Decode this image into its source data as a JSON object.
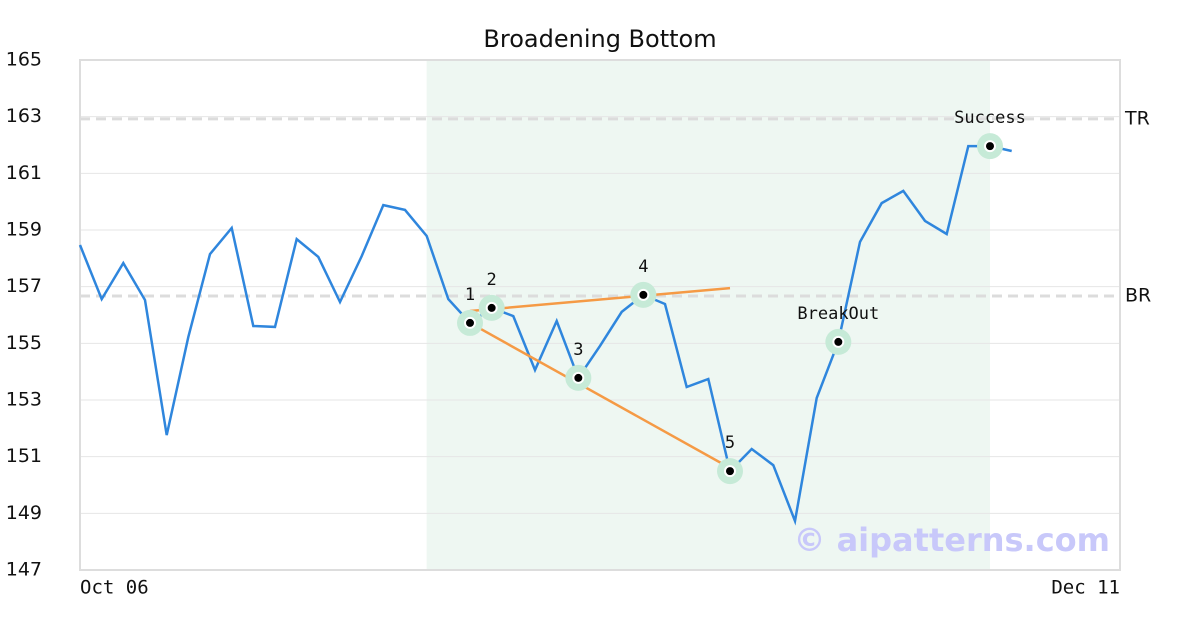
{
  "chart_data": {
    "type": "line",
    "title": "Broadening Bottom",
    "categories": [
      "Oct 06",
      null,
      null,
      null,
      null,
      null,
      null,
      null,
      null,
      null,
      null,
      null,
      null,
      null,
      null,
      null,
      null,
      null,
      null,
      null,
      null,
      null,
      null,
      null,
      null,
      null,
      null,
      null,
      null,
      null,
      null,
      null,
      null,
      null,
      null,
      null,
      null,
      null,
      null,
      null,
      null,
      null,
      null,
      null,
      null,
      null,
      null,
      null,
      "Dec 11"
    ],
    "series": [
      {
        "color": "#2f86dd",
        "values": [
          158.47,
          156.56,
          157.83,
          156.53,
          151.76,
          155.22,
          158.15,
          159.07,
          155.61,
          155.58,
          158.68,
          158.05,
          156.46,
          158.08,
          159.88,
          159.71,
          158.79,
          156.56,
          155.72,
          156.25,
          155.96,
          154.06,
          155.79,
          153.78,
          154.91,
          156.11,
          156.71,
          156.39,
          153.46,
          153.74,
          150.49,
          151.27,
          150.7,
          148.73,
          153.07,
          155.05,
          158.58,
          159.95,
          160.38,
          159.32,
          158.86,
          161.96,
          161.96,
          161.79,
          null,
          null,
          null,
          null,
          null
        ]
      }
    ],
    "ylim": [
      147,
      165
    ],
    "yticks": [
      147,
      149,
      151,
      153,
      155,
      157,
      159,
      161,
      163,
      165
    ],
    "grid": true,
    "highlight": {
      "from": 16,
      "to": 42,
      "color": "#eef7f2"
    },
    "levels": [
      {
        "label": "TR",
        "value": 162.92
      },
      {
        "label": "BR",
        "value": 156.67
      }
    ],
    "trendlines": [
      {
        "color": "#f59a45",
        "x": [
          18,
          30
        ],
        "values": [
          156.14,
          156.95
        ]
      },
      {
        "color": "#f59a45",
        "x": [
          18,
          30
        ],
        "values": [
          155.72,
          150.6
        ]
      }
    ],
    "points": [
      {
        "label": "1",
        "index": 18
      },
      {
        "label": "2",
        "index": 19
      },
      {
        "label": "3",
        "index": 23
      },
      {
        "label": "4",
        "index": 26
      },
      {
        "label": "5",
        "index": 30
      },
      {
        "label": "BreakOut",
        "index": 35
      },
      {
        "label": "Success",
        "index": 42
      }
    ],
    "watermark": "© aipatterns.com"
  }
}
